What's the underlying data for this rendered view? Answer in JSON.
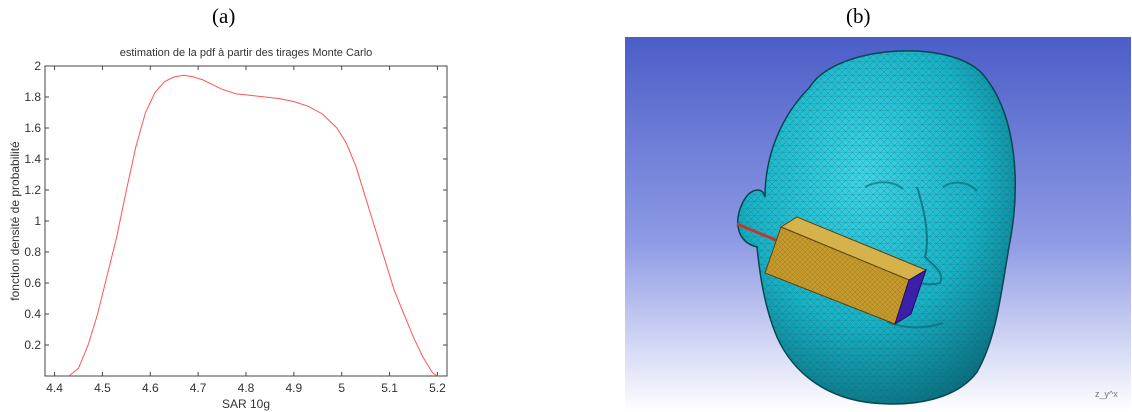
{
  "panels": {
    "a_label": "(a)",
    "b_label": "(b)"
  },
  "chart_data": {
    "type": "line",
    "title": "estimation de la pdf à partir des tirages Monte Carlo",
    "xlabel": "SAR 10g",
    "ylabel": "fonction densité de probabilité",
    "xlim": [
      4.38,
      5.22
    ],
    "ylim": [
      0,
      2
    ],
    "x_ticks": [
      "4.4",
      "4.5",
      "4.6",
      "4.7",
      "4.8",
      "4.9",
      "5",
      "5.1",
      "5.2"
    ],
    "y_ticks": [
      "0.2",
      "0.4",
      "0.6",
      "0.8",
      "1",
      "1.2",
      "1.4",
      "1.6",
      "1.8",
      "2"
    ],
    "grid": false,
    "series": [
      {
        "color": "#ff5555",
        "x": [
          4.43,
          4.45,
          4.47,
          4.49,
          4.51,
          4.53,
          4.55,
          4.57,
          4.59,
          4.61,
          4.63,
          4.65,
          4.67,
          4.69,
          4.71,
          4.73,
          4.75,
          4.78,
          4.81,
          4.84,
          4.87,
          4.9,
          4.93,
          4.96,
          4.99,
          5.01,
          5.03,
          5.05,
          5.07,
          5.09,
          5.11,
          5.13,
          5.15,
          5.17,
          5.19,
          5.2
        ],
        "y": [
          0.0,
          0.05,
          0.2,
          0.4,
          0.65,
          0.9,
          1.2,
          1.48,
          1.7,
          1.83,
          1.9,
          1.93,
          1.94,
          1.93,
          1.91,
          1.88,
          1.85,
          1.82,
          1.81,
          1.8,
          1.79,
          1.77,
          1.74,
          1.69,
          1.6,
          1.5,
          1.35,
          1.15,
          0.95,
          0.75,
          0.55,
          0.4,
          0.25,
          0.12,
          0.02,
          0.0
        ]
      }
    ]
  },
  "render": {
    "axis_glyph": "z_y^x"
  }
}
